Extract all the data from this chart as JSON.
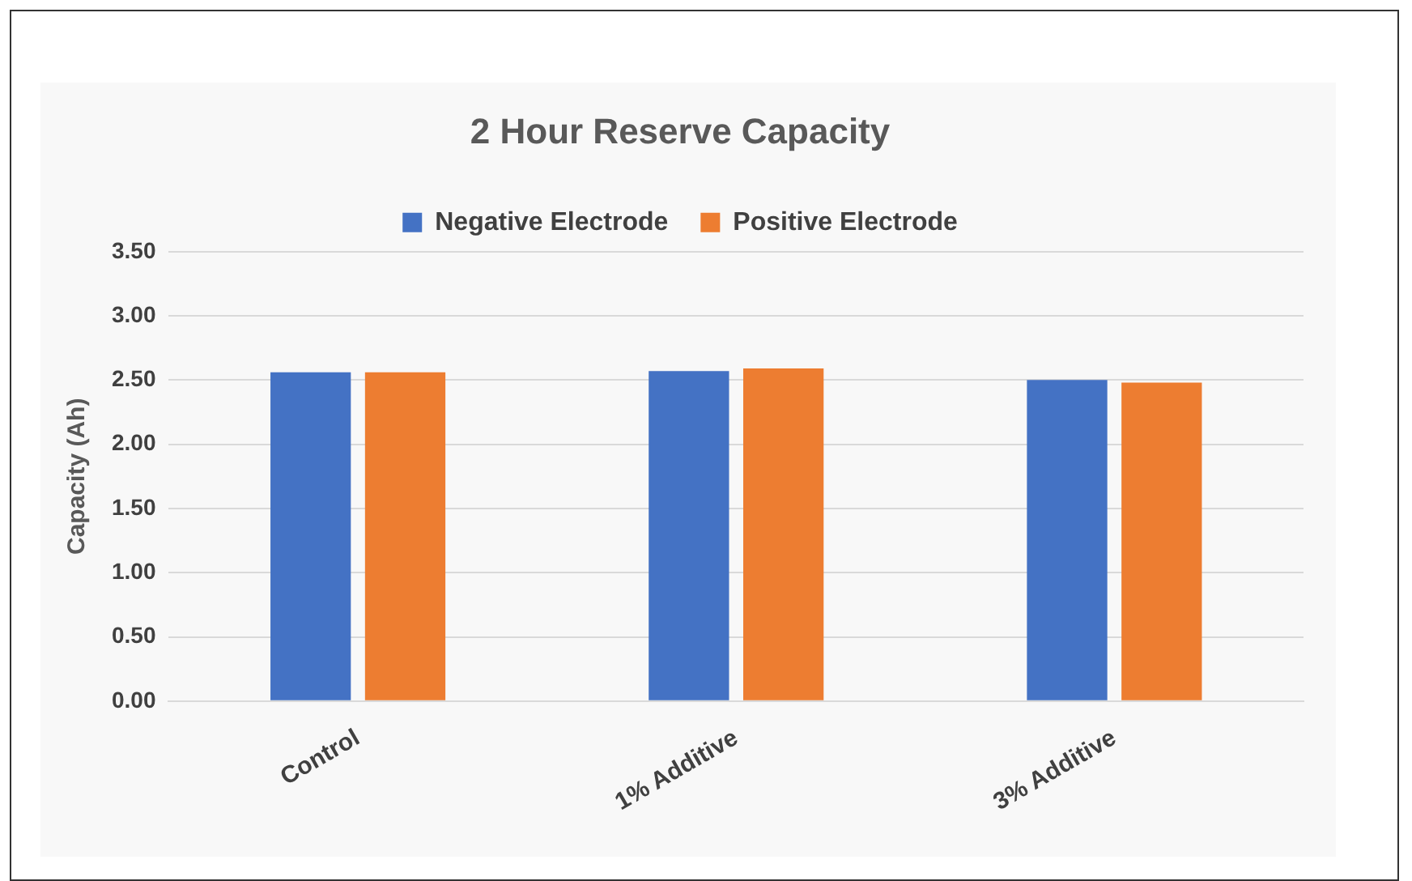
{
  "chart_data": {
    "type": "bar",
    "title": "2 Hour Reserve Capacity",
    "ylabel": "Capacity (Ah)",
    "categories": [
      "Control",
      "1% Additive",
      "3% Additive"
    ],
    "series": [
      {
        "name": "Negative Electrode",
        "color": "#4472c4",
        "values": [
          2.56,
          2.57,
          2.5
        ]
      },
      {
        "name": "Positive Electrode",
        "color": "#ed7d31",
        "values": [
          2.56,
          2.59,
          2.48
        ]
      }
    ],
    "ylim": [
      0,
      3.5
    ],
    "yticks": [
      {
        "value": 0,
        "label": "0.00"
      },
      {
        "value": 0.5,
        "label": "0.50"
      },
      {
        "value": 1,
        "label": "1.00"
      },
      {
        "value": 1.5,
        "label": "1.50"
      },
      {
        "value": 2,
        "label": "2.00"
      },
      {
        "value": 2.5,
        "label": "2.50"
      },
      {
        "value": 3,
        "label": "3.00"
      },
      {
        "value": 3.5,
        "label": "3.50"
      }
    ],
    "grid": "y",
    "legend": "top"
  }
}
